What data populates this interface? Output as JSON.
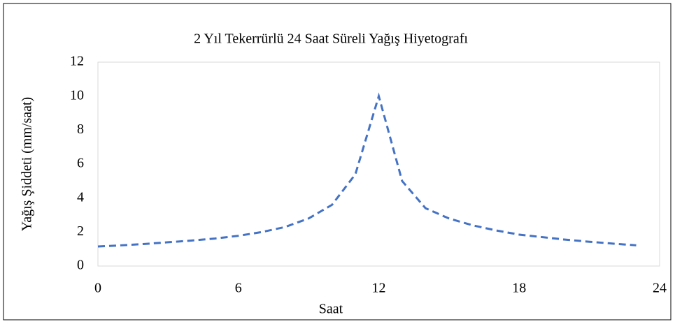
{
  "chart_data": {
    "type": "line",
    "title": "2 Yıl Tekerrürlü 24 Saat Süreli Yağış Hiyetografı",
    "x_label": "Saat",
    "y_label": "Yağış Şiddeti (mm/saat)",
    "x": [
      0,
      1,
      2,
      3,
      4,
      5,
      6,
      7,
      8,
      9,
      10,
      11,
      12,
      13,
      14,
      15,
      16,
      17,
      18,
      19,
      20,
      21,
      22,
      23
    ],
    "series": [
      {
        "name": "Yağış Şiddeti",
        "color": "#4472c4",
        "values": [
          1.15,
          1.22,
          1.3,
          1.4,
          1.5,
          1.62,
          1.78,
          2.0,
          2.3,
          2.8,
          3.6,
          5.4,
          10,
          5.0,
          3.4,
          2.8,
          2.4,
          2.1,
          1.85,
          1.7,
          1.55,
          1.43,
          1.32,
          1.22
        ]
      }
    ],
    "xlim": [
      0,
      24
    ],
    "xticks": [
      0,
      6,
      12,
      18,
      24
    ],
    "ylim": [
      0,
      12
    ],
    "yticks": [
      0,
      2,
      4,
      6,
      8,
      10,
      12
    ],
    "grid": false,
    "dashed": true
  }
}
